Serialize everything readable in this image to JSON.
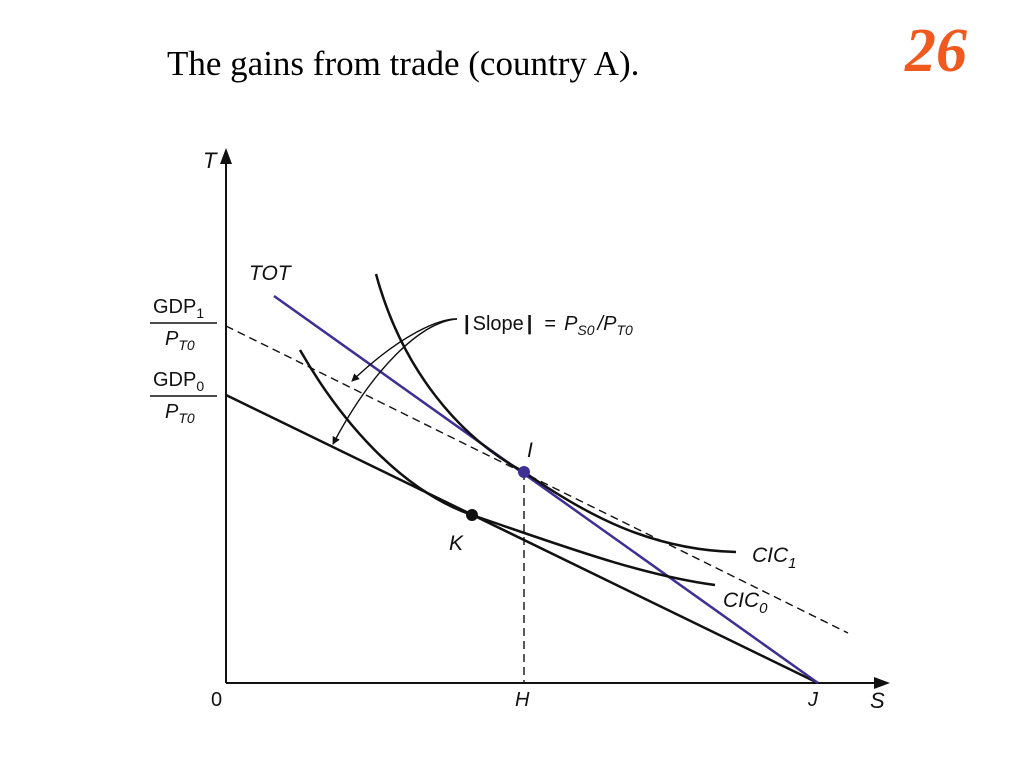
{
  "slide": {
    "title": "The gains from trade (country A).",
    "number": "26",
    "number_color": "#f05a1e"
  },
  "colors": {
    "curve": "#111111",
    "tot_line": "#3d2f93",
    "point_i": "#3d2f93",
    "point_k": "#111111"
  },
  "diagram": {
    "axis_y": "T",
    "axis_x": "S",
    "origin": "0",
    "tick_h": "H",
    "tick_j": "J",
    "tot_label": "TOT",
    "gdp1": {
      "num": "GDP",
      "num_sub": "1",
      "den": "P",
      "den_sub": "T0"
    },
    "gdp0": {
      "num": "GDP",
      "num_sub": "0",
      "den": "P",
      "den_sub": "T0"
    },
    "slope": {
      "bar_left": "|",
      "word": "Slope",
      "bar_right": "|",
      "eq": "=",
      "p1": "P",
      "p1_sub": "S0",
      "div": "/P",
      "p2_sub": "T0"
    },
    "point_i": "I",
    "point_k": "K",
    "cic1": {
      "name": "CIC",
      "sub": "1"
    },
    "cic0": {
      "name": "CIC",
      "sub": "0"
    }
  }
}
